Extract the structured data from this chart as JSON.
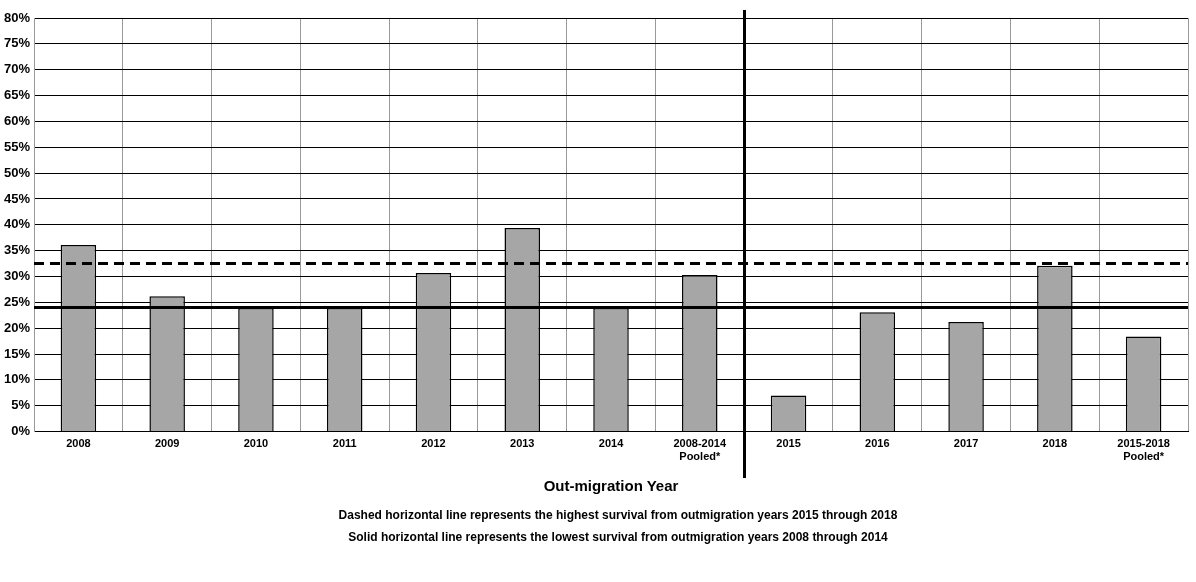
{
  "chart_data": {
    "type": "bar",
    "xlabel": "Out-migration Year",
    "categories": [
      "2008",
      "2009",
      "2010",
      "2011",
      "2012",
      "2013",
      "2014",
      "2008-2014 Pooled*",
      "2015",
      "2016",
      "2017",
      "2018",
      "2015-2018 Pooled*"
    ],
    "values": [
      36.1,
      26.2,
      23.9,
      23.9,
      30.7,
      39.4,
      23.9,
      30.3,
      7,
      23.1,
      21.2,
      32.1,
      18.4
    ],
    "color": "#a6a6a6",
    "ylim": [
      0,
      80
    ],
    "yticks": [
      {
        "value": 0,
        "label": "0%"
      },
      {
        "value": 5,
        "label": "5%"
      },
      {
        "value": 10,
        "label": "10%"
      },
      {
        "value": 15,
        "label": "15%"
      },
      {
        "value": 20,
        "label": "20%"
      },
      {
        "value": 25,
        "label": "25%"
      },
      {
        "value": 30,
        "label": "30%"
      },
      {
        "value": 35,
        "label": "35%"
      },
      {
        "value": 40,
        "label": "40%"
      },
      {
        "value": 45,
        "label": "45%"
      },
      {
        "value": 50,
        "label": "50%"
      },
      {
        "value": 55,
        "label": "55%"
      },
      {
        "value": 60,
        "label": "60%"
      },
      {
        "value": 65,
        "label": "65%"
      },
      {
        "value": 70,
        "label": "70%"
      },
      {
        "value": 75,
        "label": "75%"
      },
      {
        "value": 80,
        "label": "80%"
      }
    ],
    "grid": true,
    "ref_lines": [
      {
        "axis": "y",
        "value": 32.5,
        "color": "#000000",
        "line_style": "dashed"
      },
      {
        "axis": "y",
        "value": 24,
        "color": "#000000",
        "line_style": "solid"
      }
    ],
    "annotations": [
      "Dashed horizontal line represents the highest survival from outmigration years 2015 through 2018",
      "Solid horizontal line represents the lowest survival from outmigration years 2008 through 2014"
    ]
  }
}
